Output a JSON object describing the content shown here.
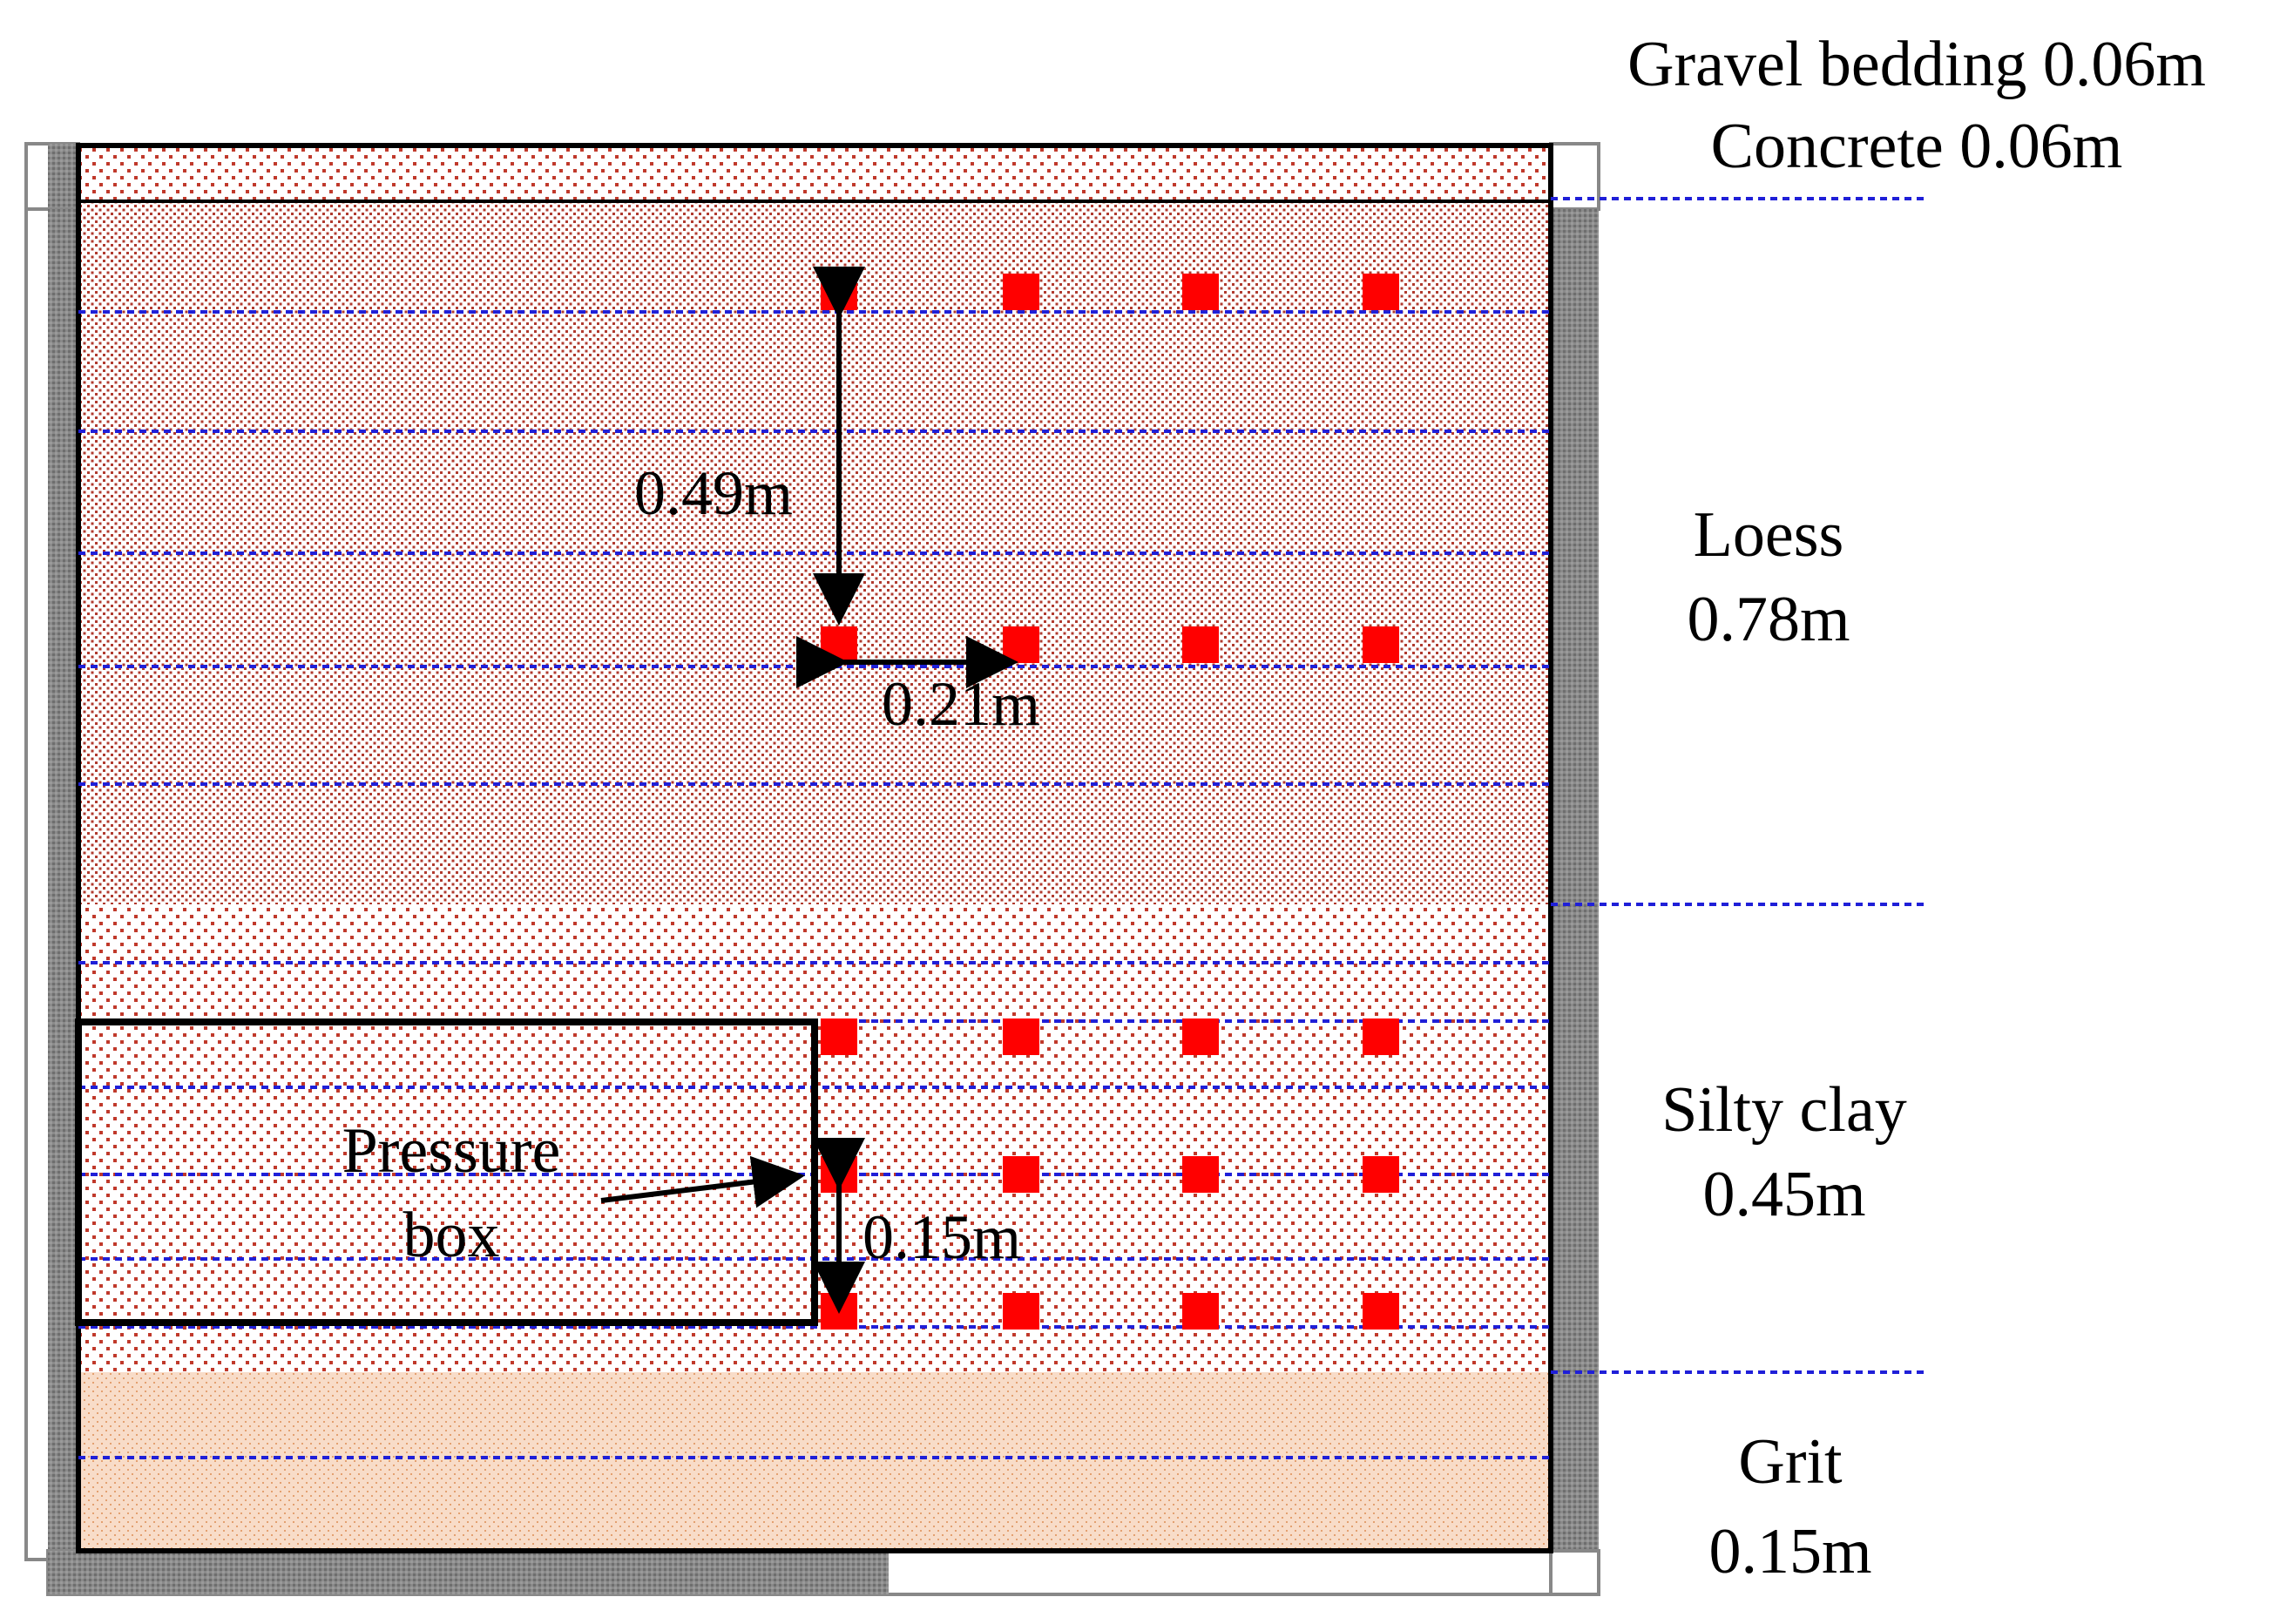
{
  "layers": {
    "gravel_bedding": "Gravel bedding 0.06m",
    "concrete": "Concrete 0.06m",
    "loess_name": "Loess",
    "loess_thickness": "0.78m",
    "silty_clay_name": "Silty clay",
    "silty_clay_thickness": "0.45m",
    "grit_name": "Grit",
    "grit_thickness": "0.15m"
  },
  "dimensions": {
    "vertical_spacing_loess": "0.49m",
    "horizontal_spacing": "0.21m",
    "vertical_spacing_silty_clay": "0.15m"
  },
  "pressure_box_label_line1": "Pressure",
  "pressure_box_label_line2": "box",
  "colors": {
    "loess_dots": "#b03a2e",
    "silty_clay_dots": "#c0392b",
    "grit_fill": "#f8dcc8",
    "grit_dots": "#e3a070",
    "measurement_line": "#1f1fd8",
    "sensor": "#ff0000",
    "frame_grey": "#808080"
  }
}
